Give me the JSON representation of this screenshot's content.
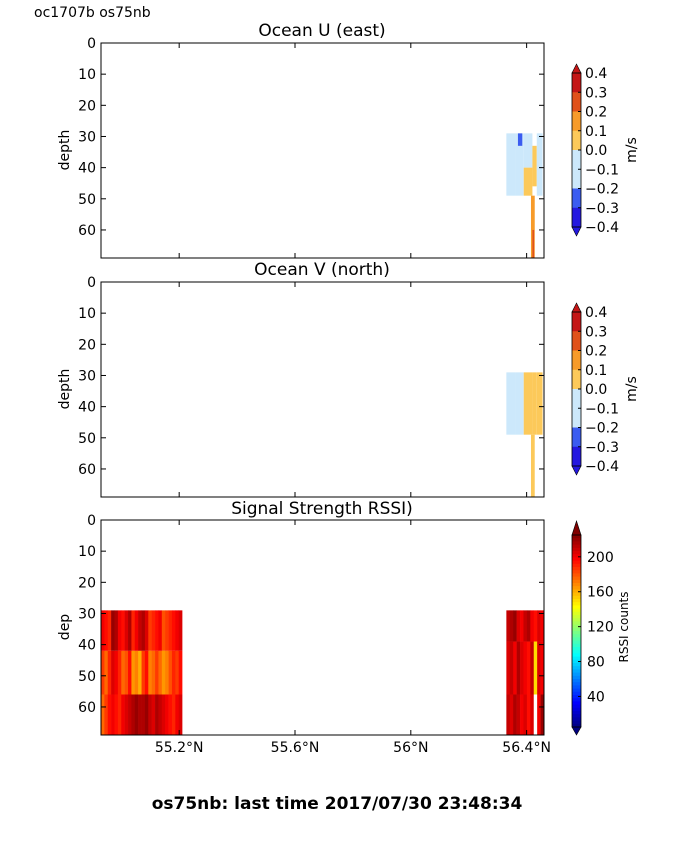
{
  "header": {
    "label": "oc1707b os75nb"
  },
  "footer": {
    "text": "os75nb: last time 2017/07/30 23:48:34"
  },
  "chart_data": [
    {
      "type": "heatmap",
      "title": "Ocean U (east)",
      "ylabel": "depth",
      "ylim": [
        69,
        0
      ],
      "yticks": [
        "0",
        "10",
        "20",
        "30",
        "40",
        "50",
        "60"
      ],
      "xlim": [
        54.93,
        56.46
      ],
      "colorbar": {
        "label": "m/s",
        "ticks": [
          "0.4",
          "0.3",
          "0.2",
          "0.1",
          "0.0",
          "−0.1",
          "−0.2",
          "−0.3",
          "−0.4"
        ],
        "range": [
          -0.4,
          0.4
        ]
      },
      "cells": [
        {
          "x0": 56.33,
          "x1": 56.36,
          "y0": 29,
          "y1": 49,
          "value": -0.12
        },
        {
          "x0": 56.36,
          "x1": 56.39,
          "y0": 29,
          "y1": 49,
          "value": -0.15
        },
        {
          "x0": 56.37,
          "x1": 56.385,
          "y0": 29,
          "y1": 33,
          "value": -0.35
        },
        {
          "x0": 56.39,
          "x1": 56.42,
          "y0": 29,
          "y1": 40,
          "value": -0.1
        },
        {
          "x0": 56.39,
          "x1": 56.42,
          "y0": 40,
          "y1": 49,
          "value": 0.05
        },
        {
          "x0": 56.42,
          "x1": 56.435,
          "y0": 33,
          "y1": 46,
          "value": 0.03
        },
        {
          "x0": 56.435,
          "x1": 56.455,
          "y0": 29,
          "y1": 49,
          "value": -0.05
        },
        {
          "x0": 56.415,
          "x1": 56.428,
          "y0": 49,
          "y1": 69,
          "value": 0.18
        },
        {
          "x0": 56.42,
          "x1": 56.426,
          "y0": 60,
          "y1": 69,
          "value": 0.25
        }
      ]
    },
    {
      "type": "heatmap",
      "title": "Ocean V (north)",
      "ylabel": "depth",
      "ylim": [
        69,
        0
      ],
      "yticks": [
        "0",
        "10",
        "20",
        "30",
        "40",
        "50",
        "60"
      ],
      "xlim": [
        54.93,
        56.46
      ],
      "colorbar": {
        "label": "m/s",
        "ticks": [
          "0.4",
          "0.3",
          "0.2",
          "0.1",
          "0.0",
          "−0.1",
          "−0.2",
          "−0.3",
          "−0.4"
        ],
        "range": [
          -0.4,
          0.4
        ]
      },
      "cells": [
        {
          "x0": 56.33,
          "x1": 56.36,
          "y0": 29,
          "y1": 49,
          "value": -0.05
        },
        {
          "x0": 56.36,
          "x1": 56.39,
          "y0": 29,
          "y1": 49,
          "value": -0.05
        },
        {
          "x0": 56.39,
          "x1": 56.42,
          "y0": 29,
          "y1": 49,
          "value": 0.12
        },
        {
          "x0": 56.42,
          "x1": 56.435,
          "y0": 29,
          "y1": 49,
          "value": 0.04
        },
        {
          "x0": 56.435,
          "x1": 56.455,
          "y0": 29,
          "y1": 49,
          "value": 0.12
        },
        {
          "x0": 56.415,
          "x1": 56.428,
          "y0": 49,
          "y1": 69,
          "value": 0.03
        }
      ]
    },
    {
      "type": "heatmap",
      "title": "Signal Strength RSSI)",
      "ylabel": "dep",
      "ylim": [
        69,
        0
      ],
      "yticks": [
        "0",
        "10",
        "20",
        "30",
        "40",
        "50",
        "60"
      ],
      "xlim": [
        54.93,
        56.46
      ],
      "xticks": [
        {
          "value": 55.2,
          "label": "55.2°N"
        },
        {
          "value": 55.6,
          "label": "55.6°N"
        },
        {
          "value": 56.0,
          "label": "56°N"
        },
        {
          "value": 56.4,
          "label": "56.4°N"
        }
      ],
      "colorbar": {
        "label": "RSSI counts",
        "ticks": [
          "200",
          "160",
          "120",
          "80",
          "40"
        ],
        "range": [
          5,
          225
        ]
      },
      "rows": [
        {
          "y0": 29,
          "y1": 42,
          "x0": 54.93,
          "x1": 55.21,
          "values": [
            200,
            195,
            190,
            220,
            215,
            200,
            195,
            205,
            215,
            190,
            200,
            210,
            215,
            205,
            185,
            190,
            195,
            200,
            180,
            185,
            190,
            195,
            200,
            205
          ]
        },
        {
          "y0": 42,
          "y1": 56,
          "x0": 54.93,
          "x1": 55.21,
          "values": [
            185,
            175,
            190,
            205,
            200,
            190,
            175,
            180,
            195,
            165,
            170,
            160,
            185,
            195,
            170,
            175,
            185,
            175,
            165,
            170,
            180,
            190,
            185,
            195
          ]
        },
        {
          "y0": 56,
          "y1": 69,
          "x0": 54.93,
          "x1": 55.21,
          "values": [
            175,
            185,
            195,
            200,
            195,
            190,
            200,
            205,
            210,
            215,
            220,
            215,
            215,
            220,
            210,
            205,
            215,
            210,
            205,
            200,
            195,
            190,
            200,
            205
          ]
        },
        {
          "y0": 29,
          "y1": 39,
          "x0": 56.33,
          "x1": 56.46,
          "values": [
            210,
            215,
            220,
            205,
            200,
            210,
            215,
            200,
            195,
            205,
            200
          ]
        },
        {
          "y0": 39,
          "y1": 56,
          "x0": 56.33,
          "x1": 56.46,
          "values": [
            205,
            210,
            200,
            215,
            205,
            200,
            195,
            210,
            150,
            205,
            200
          ]
        },
        {
          "y0": 56,
          "y1": 69,
          "x0": 56.33,
          "x1": 56.46,
          "values": [
            210,
            205,
            215,
            210,
            200,
            205,
            195,
            205,
            0,
            200,
            220
          ]
        }
      ]
    }
  ]
}
